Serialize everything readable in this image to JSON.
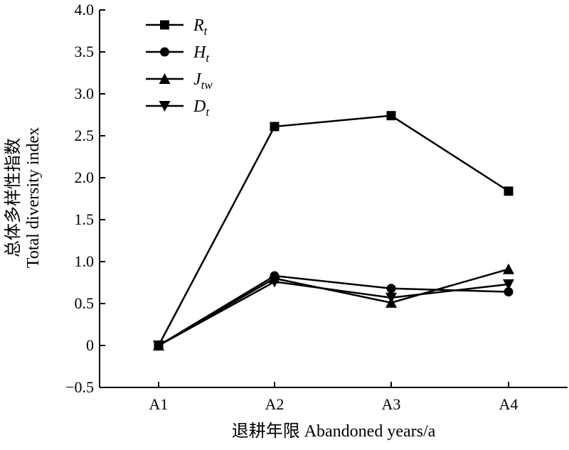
{
  "chart_data": {
    "type": "line",
    "title": "",
    "xlabel": "退耕年限 Abandoned years/a",
    "ylabel_cn": "总体多样性指数",
    "ylabel_en": "Total diversity index",
    "categories": [
      "A1",
      "A2",
      "A3",
      "A4"
    ],
    "ylim": [
      -0.5,
      4.0
    ],
    "yticks": [
      -0.5,
      0,
      0.5,
      1.0,
      1.5,
      2.0,
      2.5,
      3.0,
      3.5,
      4.0
    ],
    "ytick_labels": [
      "−0.5",
      "0",
      "0.5",
      "1.0",
      "1.5",
      "2.0",
      "2.5",
      "3.0",
      "3.5",
      "4.0"
    ],
    "grid": false,
    "legend_position": "top-left",
    "series": [
      {
        "name": "R",
        "sub": "t",
        "marker": "square",
        "values": [
          0.0,
          2.61,
          2.74,
          1.84
        ]
      },
      {
        "name": "H",
        "sub": "t",
        "marker": "circle",
        "values": [
          0.0,
          0.83,
          0.68,
          0.64
        ]
      },
      {
        "name": "J",
        "sub": "tw",
        "marker": "triangle-up",
        "values": [
          0.0,
          0.8,
          0.51,
          0.91
        ]
      },
      {
        "name": "D",
        "sub": "t",
        "marker": "triangle-down",
        "values": [
          0.0,
          0.76,
          0.57,
          0.73
        ]
      }
    ]
  }
}
